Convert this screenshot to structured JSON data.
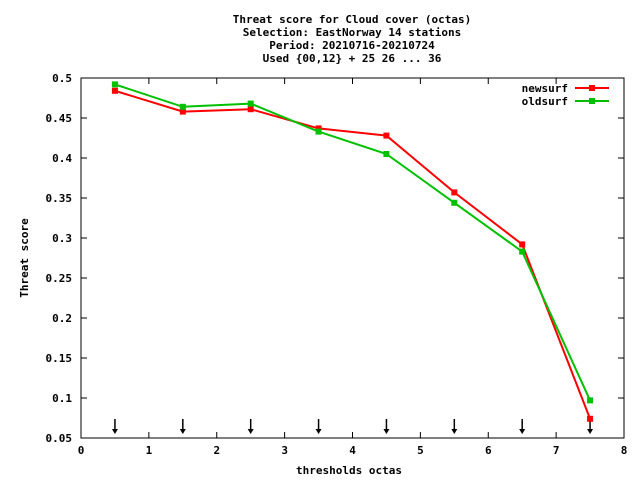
{
  "chart_data": {
    "type": "line",
    "title_lines": [
      "Threat score  for Cloud cover (octas)",
      "Selection: EastNorway     14 stations",
      "Period: 20210716-20210724",
      "Used {00,12} + 25 26 ... 36"
    ],
    "xlabel": "thresholds octas",
    "ylabel": "Threat score",
    "xlim": [
      0,
      8
    ],
    "ylim": [
      0.05,
      0.5
    ],
    "xticks": [
      "0",
      "1",
      "2",
      "3",
      "4",
      "5",
      "6",
      "7",
      "8"
    ],
    "yticks": [
      "0.05",
      "0.1",
      "0.15",
      "0.2",
      "0.25",
      "0.3",
      "0.35",
      "0.4",
      "0.45",
      "0.5"
    ],
    "grid": false,
    "legend_position": "top-right",
    "threshold_markers": [
      0.5,
      1.5,
      2.5,
      3.5,
      4.5,
      5.5,
      6.5,
      7.5
    ],
    "series": [
      {
        "name": "newsurf",
        "color": "#ff0000",
        "x": [
          0.5,
          1.5,
          2.5,
          3.5,
          4.5,
          5.5,
          6.5,
          7.5
        ],
        "y": [
          0.484,
          0.458,
          0.461,
          0.437,
          0.428,
          0.357,
          0.292,
          0.074
        ]
      },
      {
        "name": "oldsurf",
        "color": "#00c000",
        "x": [
          0.5,
          1.5,
          2.5,
          3.5,
          4.5,
          5.5,
          6.5,
          7.5
        ],
        "y": [
          0.492,
          0.464,
          0.468,
          0.433,
          0.405,
          0.344,
          0.283,
          0.097
        ]
      }
    ]
  }
}
